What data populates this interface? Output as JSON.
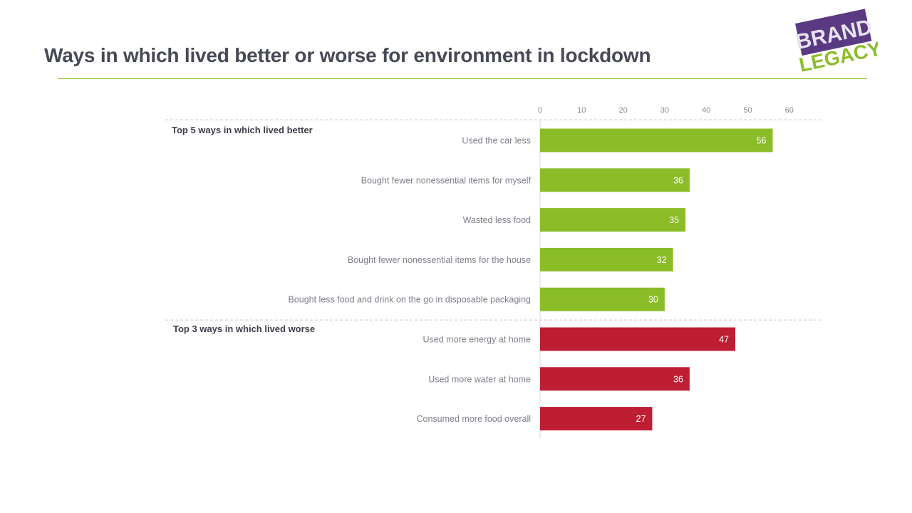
{
  "title": "Ways in which lived better or worse for environment in lockdown",
  "logo": {
    "line1": "BRAND",
    "line2": "LEGACY",
    "purple": "#5a3a82",
    "green": "#8cbd2b"
  },
  "colors": {
    "rule": "#8cbd2b",
    "better": "#8bbd28",
    "worse": "#be1e32"
  },
  "chart_data": {
    "type": "bar",
    "orientation": "horizontal",
    "xlim": [
      0,
      60
    ],
    "xticks": [
      0,
      10,
      20,
      30,
      40,
      50,
      60
    ],
    "axis_position": "top",
    "grid": false,
    "groups": [
      {
        "label": "Top 5 ways in which lived better",
        "color": "#8bbd28",
        "categories": [
          "Used the car less",
          "Bought fewer nonessential items for myself",
          "Wasted less food",
          "Bought fewer nonessential items for the house",
          "Bought less food and drink on the go in disposable packaging"
        ],
        "values": [
          56,
          36,
          35,
          32,
          30
        ]
      },
      {
        "label": "Top 3 ways in which lived worse",
        "color": "#be1e32",
        "categories": [
          "Used more energy at home",
          "Used more water at home",
          "Consumed more food overall"
        ],
        "values": [
          47,
          36,
          27
        ]
      }
    ]
  }
}
